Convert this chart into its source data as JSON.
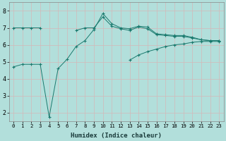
{
  "xlabel": "Humidex (Indice chaleur)",
  "x": [
    0,
    1,
    2,
    3,
    4,
    5,
    6,
    7,
    8,
    9,
    10,
    11,
    12,
    13,
    14,
    15,
    16,
    17,
    18,
    19,
    20,
    21,
    22,
    23
  ],
  "line1": [
    4.7,
    4.85,
    4.85,
    4.85,
    1.75,
    4.6,
    5.15,
    5.9,
    6.25,
    6.9,
    7.85,
    7.25,
    7.0,
    6.95,
    7.1,
    7.05,
    6.65,
    6.6,
    6.55,
    6.55,
    6.45,
    6.3,
    6.25,
    6.25
  ],
  "line2": [
    7.0,
    7.0,
    7.0,
    7.0,
    null,
    null,
    null,
    6.85,
    7.0,
    7.0,
    7.65,
    7.1,
    6.95,
    6.85,
    7.05,
    6.95,
    6.6,
    6.55,
    6.5,
    6.5,
    6.4,
    6.3,
    6.25,
    6.25
  ],
  "line3": [
    null,
    null,
    null,
    null,
    null,
    null,
    null,
    null,
    null,
    null,
    null,
    null,
    null,
    5.1,
    5.4,
    5.6,
    5.75,
    5.9,
    6.0,
    6.05,
    6.15,
    6.2,
    6.2,
    6.2
  ],
  "line_color": "#1a7a6e",
  "bg_color": "#b2dfdb",
  "grid_color": "#d4b8b8",
  "ylim": [
    1.5,
    8.5
  ],
  "xlim": [
    -0.5,
    23.5
  ],
  "yticks": [
    2,
    3,
    4,
    5,
    6,
    7,
    8
  ],
  "xtick_fontsize": 5.2,
  "ytick_fontsize": 6.0,
  "xlabel_fontsize": 6.5,
  "linewidth": 0.7,
  "markersize": 2.5
}
